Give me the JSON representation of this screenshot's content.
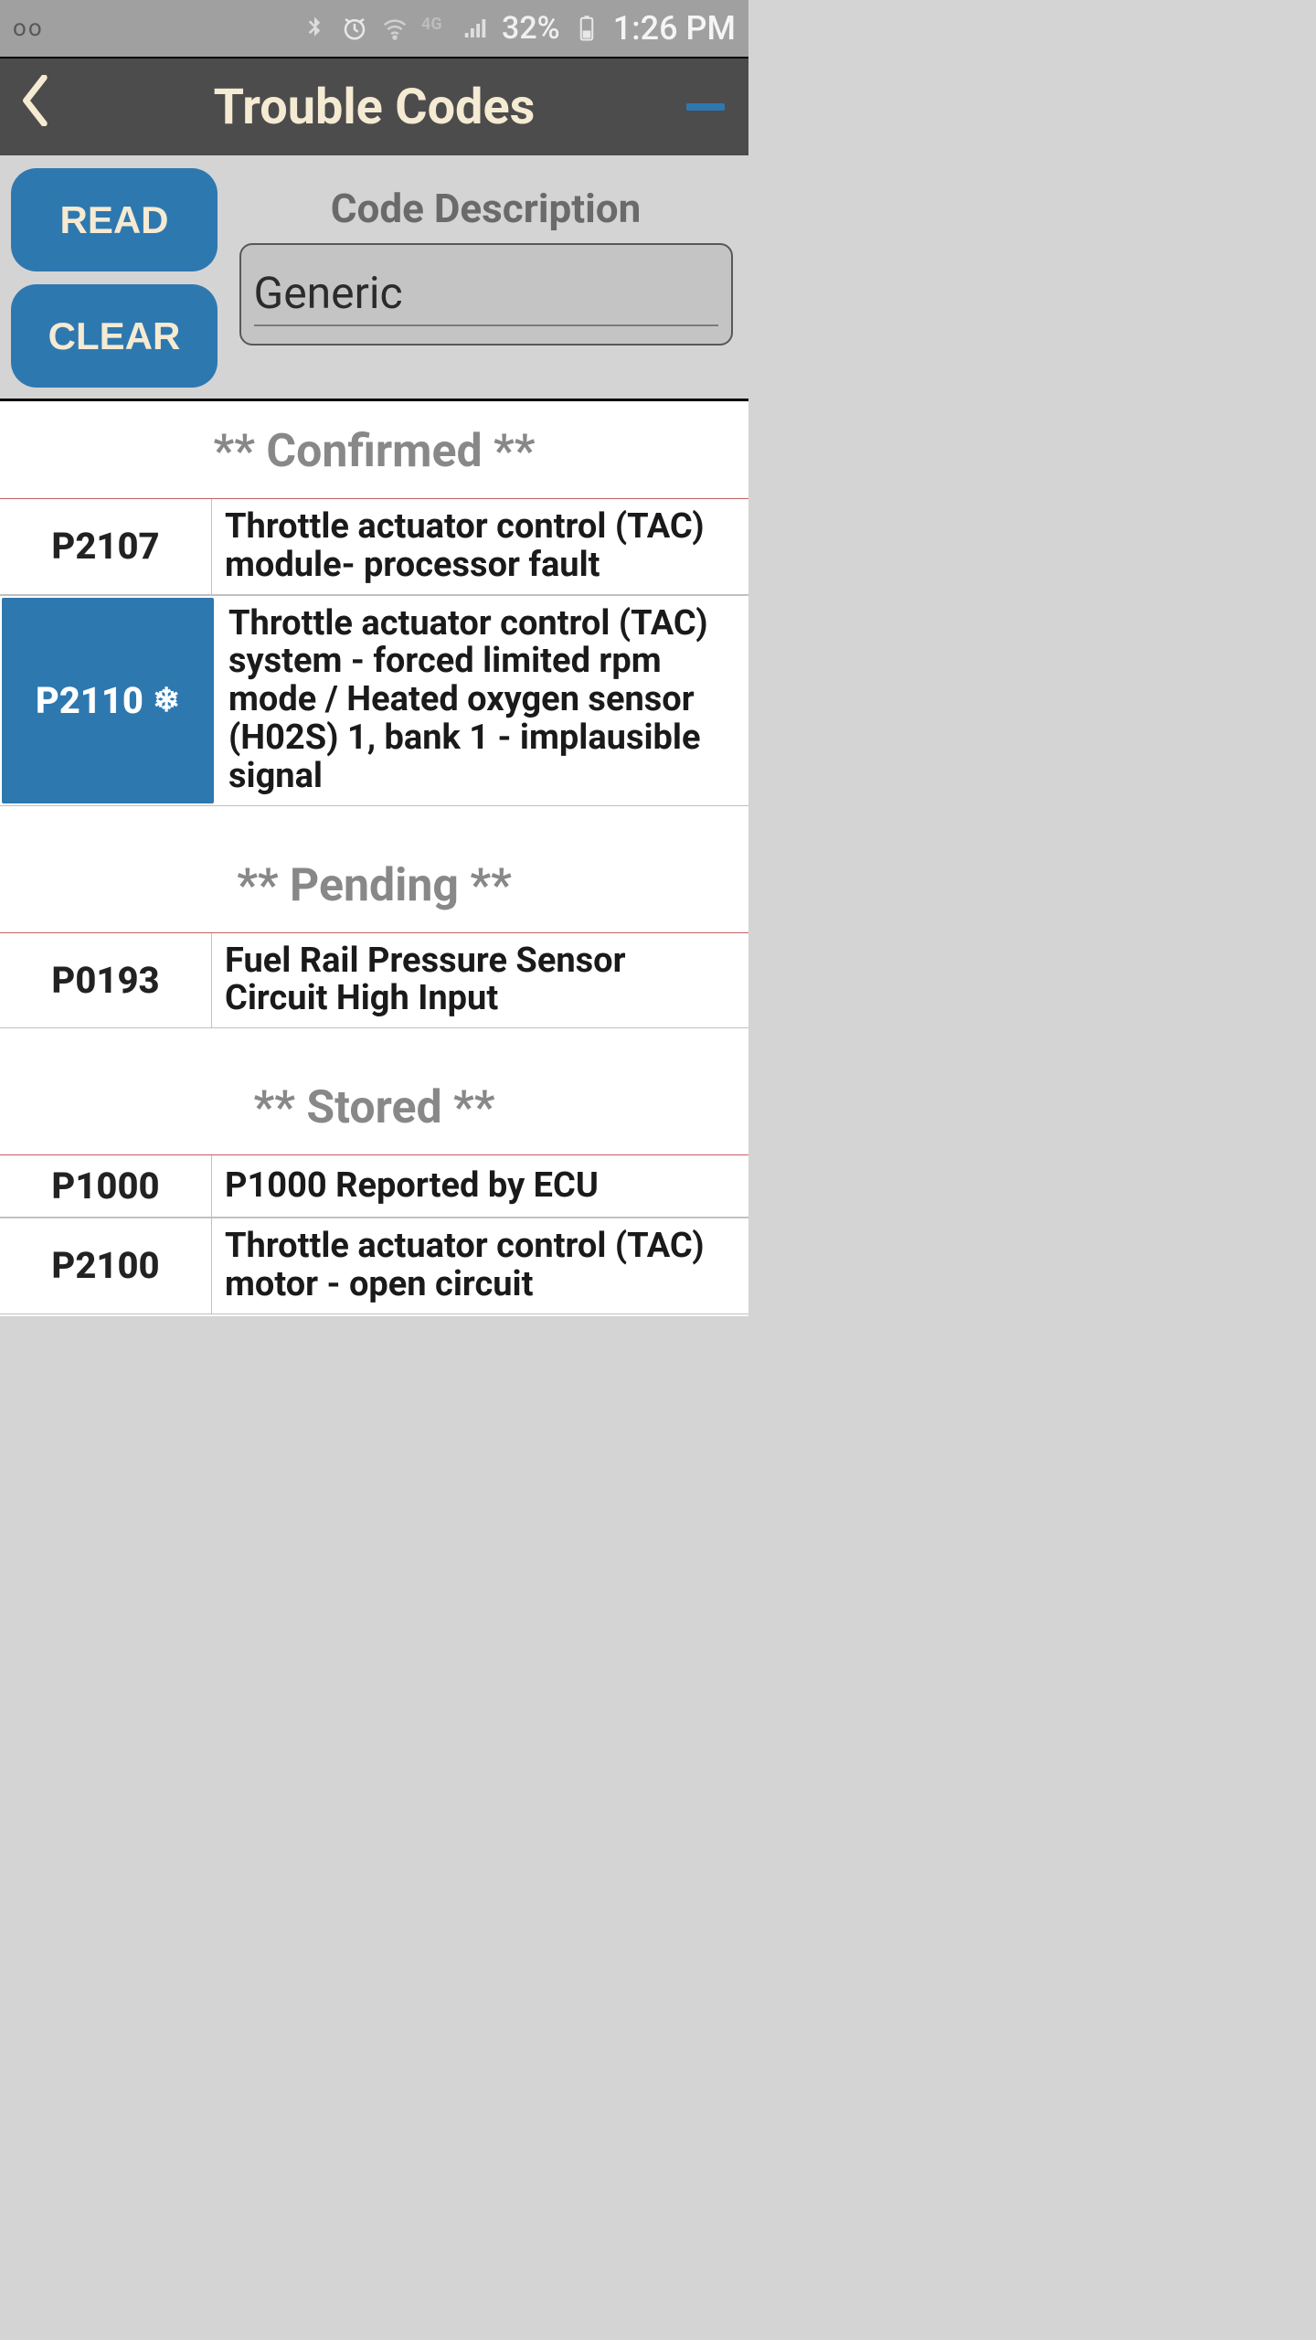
{
  "status_bar": {
    "voicemail_glyph": "oo",
    "battery_pct": "32%",
    "time": "1:26 PM"
  },
  "header": {
    "title": "Trouble Codes"
  },
  "controls": {
    "read_label": "READ",
    "clear_label": "CLEAR",
    "desc_heading": "Code Description",
    "desc_value": "Generic"
  },
  "colors": {
    "accent": "#2e78b0",
    "header_bg": "#4c4c4c",
    "header_text": "#f5ead2",
    "page_bg": "#d4d4d4",
    "section_text": "#888888",
    "row_border_accent": "#c46060"
  },
  "sections": [
    {
      "title": "** Confirmed **",
      "rows": [
        {
          "code": "P2107",
          "selected": false,
          "freeze": false,
          "desc": "Throttle actuator control (TAC) module- processor fault"
        },
        {
          "code": "P2110",
          "selected": true,
          "freeze": true,
          "desc": "Throttle actuator control (TAC) system - forced limited rpm mode / Heated oxygen sensor (H02S) 1, bank 1 - implausible signal"
        }
      ]
    },
    {
      "title": "** Pending **",
      "rows": [
        {
          "code": "P0193",
          "selected": false,
          "freeze": false,
          "desc": "Fuel Rail Pressure Sensor Circuit High Input"
        }
      ]
    },
    {
      "title": "** Stored **",
      "rows": [
        {
          "code": "P1000",
          "selected": false,
          "freeze": false,
          "desc": "P1000 Reported by ECU"
        },
        {
          "code": "P2100",
          "selected": false,
          "freeze": false,
          "desc": "Throttle actuator control (TAC) motor - open circuit"
        }
      ]
    }
  ]
}
